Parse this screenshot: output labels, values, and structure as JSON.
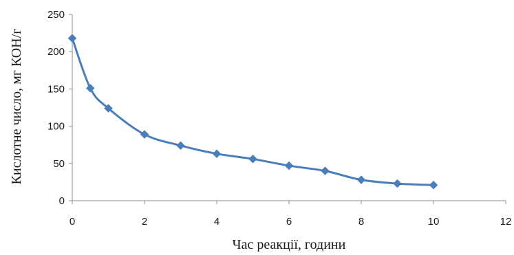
{
  "chart_data": {
    "type": "line",
    "title": "",
    "xlabel": "Час реакції, години",
    "ylabel": "Кислотне число, мг КОН/г",
    "xlim": [
      0,
      12
    ],
    "ylim": [
      0,
      250
    ],
    "x_ticks": [
      0,
      2,
      4,
      6,
      8,
      10,
      12
    ],
    "y_ticks": [
      0,
      50,
      100,
      150,
      200,
      250
    ],
    "grid": false,
    "legend": "none",
    "series": [
      {
        "color": "#4a7ebb",
        "marker": "diamond",
        "smooth": true,
        "points": [
          {
            "x": 0,
            "y": 218
          },
          {
            "x": 0.5,
            "y": 151
          },
          {
            "x": 1,
            "y": 124
          },
          {
            "x": 2,
            "y": 89
          },
          {
            "x": 3,
            "y": 74
          },
          {
            "x": 4,
            "y": 63
          },
          {
            "x": 5,
            "y": 56
          },
          {
            "x": 6,
            "y": 47
          },
          {
            "x": 7,
            "y": 40
          },
          {
            "x": 8,
            "y": 28
          },
          {
            "x": 9,
            "y": 23
          },
          {
            "x": 10,
            "y": 21
          }
        ]
      }
    ]
  }
}
